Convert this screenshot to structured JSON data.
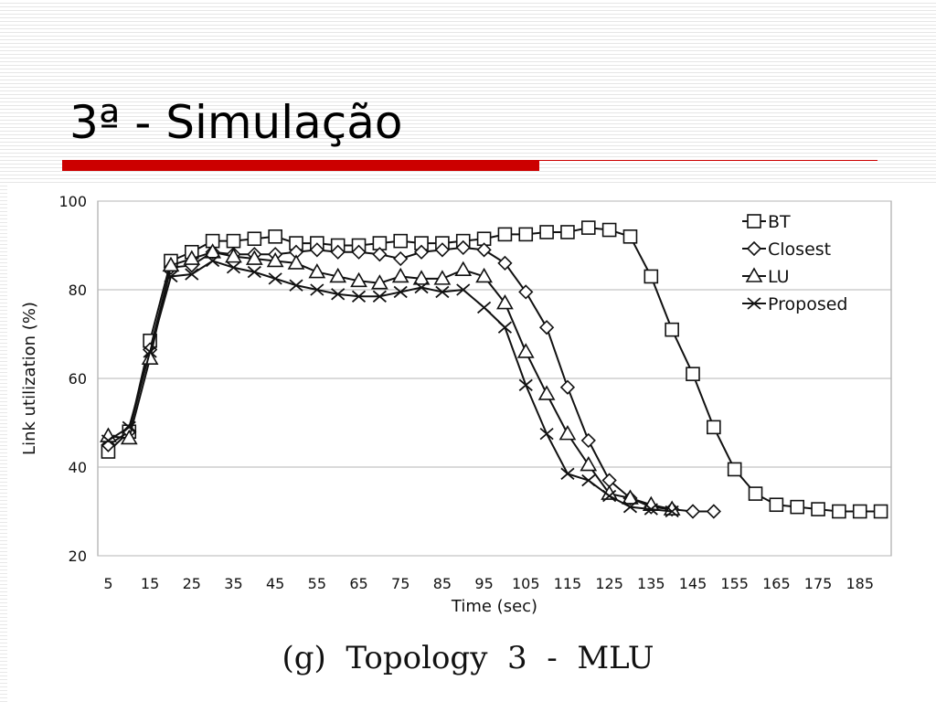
{
  "slide": {
    "title": "3ª - Simulação",
    "accent_color": "#cc0000"
  },
  "caption": "(g)  Topology  3  -  MLU",
  "chart_data": {
    "type": "line",
    "title": "",
    "xlabel": "Time (sec)",
    "ylabel": "Link utilization (%)",
    "ylim": [
      20,
      100
    ],
    "yticks": [
      20,
      40,
      60,
      80,
      100
    ],
    "xticks": [
      5,
      15,
      25,
      35,
      45,
      55,
      65,
      75,
      85,
      95,
      105,
      115,
      125,
      135,
      145,
      155,
      165,
      175,
      185
    ],
    "grid": "horizontal",
    "legend_position": "top-right",
    "series": [
      {
        "name": "BT",
        "marker": "square",
        "x": [
          5,
          10,
          15,
          20,
          25,
          30,
          35,
          40,
          45,
          50,
          55,
          60,
          65,
          70,
          75,
          80,
          85,
          90,
          95,
          100,
          105,
          110,
          115,
          120,
          125,
          130,
          135,
          140,
          145,
          150,
          155,
          160,
          165,
          170,
          175,
          180,
          185,
          190
        ],
        "y": [
          43.5,
          48,
          68.5,
          86.5,
          88.5,
          91,
          91,
          91.5,
          92,
          90.5,
          90.5,
          90,
          90,
          90.5,
          91,
          90.5,
          90.5,
          91,
          91.5,
          92.5,
          92.5,
          93,
          93,
          94,
          93.5,
          92,
          83,
          71,
          61,
          49,
          39.5,
          34,
          31.5,
          31,
          30.5,
          30,
          30,
          30
        ]
      },
      {
        "name": "Closest",
        "marker": "diamond",
        "x": [
          5,
          10,
          15,
          20,
          25,
          30,
          35,
          40,
          45,
          50,
          55,
          60,
          65,
          70,
          75,
          80,
          85,
          90,
          95,
          100,
          105,
          110,
          115,
          120,
          125,
          130,
          135,
          140,
          145,
          150
        ],
        "y": [
          45,
          48,
          66.5,
          85,
          85.5,
          88.5,
          88,
          88,
          88,
          88.5,
          89,
          88.5,
          88.5,
          88,
          87,
          88.5,
          89,
          89.5,
          89,
          86,
          79.5,
          71.5,
          58,
          46,
          37,
          33,
          31,
          30.5,
          30,
          30
        ]
      },
      {
        "name": "LU",
        "marker": "triangle",
        "x": [
          5,
          10,
          15,
          20,
          25,
          30,
          35,
          40,
          45,
          50,
          55,
          60,
          65,
          70,
          75,
          80,
          85,
          90,
          95,
          100,
          105,
          110,
          115,
          120,
          125,
          130,
          135,
          140
        ],
        "y": [
          47,
          46.5,
          64.5,
          85.5,
          87,
          88.5,
          87.5,
          87,
          86.5,
          86,
          84,
          83,
          82,
          81.5,
          83,
          82.5,
          82.5,
          84.5,
          83,
          77,
          66,
          56.5,
          47.5,
          40.5,
          34,
          33,
          31.5,
          30.5
        ]
      },
      {
        "name": "Proposed",
        "marker": "x",
        "x": [
          5,
          10,
          15,
          20,
          25,
          30,
          35,
          40,
          45,
          50,
          55,
          60,
          65,
          70,
          75,
          80,
          85,
          90,
          95,
          100,
          105,
          110,
          115,
          120,
          125,
          130,
          135,
          140
        ],
        "y": [
          46,
          49,
          66,
          83,
          83.5,
          86.5,
          85,
          84,
          82.5,
          81,
          80,
          79,
          78.5,
          78.5,
          79.5,
          80.5,
          79.5,
          80,
          76,
          71.5,
          58.5,
          47.5,
          38.5,
          37,
          33.5,
          31,
          30.5,
          30
        ]
      }
    ]
  }
}
